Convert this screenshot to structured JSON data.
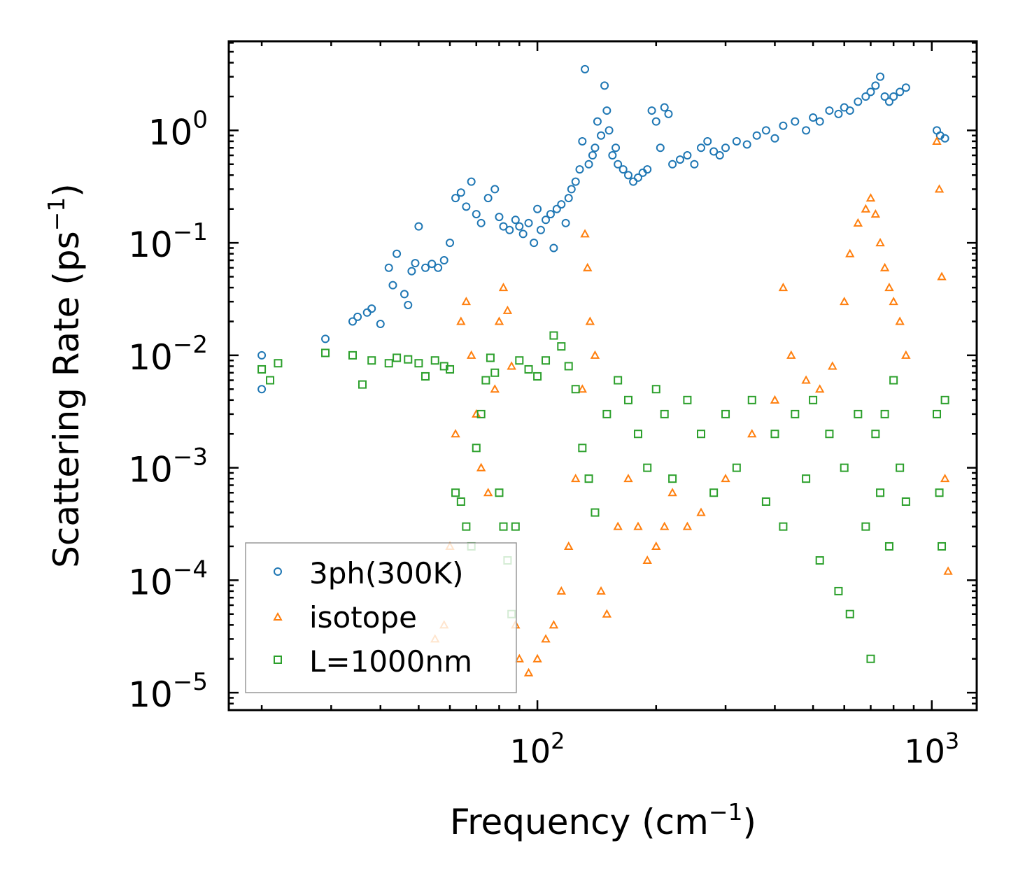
{
  "chart_data": {
    "type": "scatter",
    "xscale": "log",
    "yscale": "log",
    "xlim": [
      16.5,
      1300
    ],
    "ylim": [
      7e-06,
      6.2
    ],
    "xlabel": "Frequency (cm",
    "xlabel_sup": "−1",
    "xlabel_end": ")",
    "ylabel": "Scattering Rate (ps",
    "ylabel_sup": "−1",
    "ylabel_end": ")",
    "x_ticks": [
      {
        "value": 100,
        "base": "10",
        "exp": "2"
      },
      {
        "value": 1000,
        "base": "10",
        "exp": "3"
      }
    ],
    "y_ticks": [
      {
        "value": 1,
        "base": "10",
        "exp": "0"
      },
      {
        "value": 0.1,
        "base": "10",
        "exp": "−1"
      },
      {
        "value": 0.01,
        "base": "10",
        "exp": "−2"
      },
      {
        "value": 0.001,
        "base": "10",
        "exp": "−3"
      },
      {
        "value": 0.0001,
        "base": "10",
        "exp": "−4"
      },
      {
        "value": 1e-05,
        "base": "10",
        "exp": "−5"
      }
    ],
    "legend_position": "lower-left",
    "series": [
      {
        "name": "3ph(300K)",
        "marker": "circle",
        "color": "#1f77b4",
        "points": [
          [
            20,
            0.01
          ],
          [
            20,
            0.005
          ],
          [
            29,
            0.014
          ],
          [
            34,
            0.02
          ],
          [
            35,
            0.022
          ],
          [
            37,
            0.024
          ],
          [
            38,
            0.026
          ],
          [
            40,
            0.019
          ],
          [
            42,
            0.06
          ],
          [
            43,
            0.042
          ],
          [
            44,
            0.08
          ],
          [
            46,
            0.035
          ],
          [
            47,
            0.028
          ],
          [
            48,
            0.056
          ],
          [
            49,
            0.066
          ],
          [
            50,
            0.14
          ],
          [
            52,
            0.06
          ],
          [
            54,
            0.065
          ],
          [
            56,
            0.06
          ],
          [
            58,
            0.07
          ],
          [
            60,
            0.1
          ],
          [
            62,
            0.25
          ],
          [
            64,
            0.28
          ],
          [
            66,
            0.21
          ],
          [
            68,
            0.35
          ],
          [
            70,
            0.18
          ],
          [
            72,
            0.15
          ],
          [
            75,
            0.25
          ],
          [
            78,
            0.3
          ],
          [
            80,
            0.17
          ],
          [
            82,
            0.14
          ],
          [
            85,
            0.13
          ],
          [
            88,
            0.16
          ],
          [
            90,
            0.14
          ],
          [
            92,
            0.12
          ],
          [
            95,
            0.15
          ],
          [
            98,
            0.1
          ],
          [
            100,
            0.2
          ],
          [
            102,
            0.13
          ],
          [
            105,
            0.16
          ],
          [
            108,
            0.18
          ],
          [
            110,
            0.09
          ],
          [
            112,
            0.2
          ],
          [
            115,
            0.22
          ],
          [
            118,
            0.15
          ],
          [
            120,
            0.25
          ],
          [
            122,
            0.3
          ],
          [
            125,
            0.35
          ],
          [
            128,
            0.45
          ],
          [
            130,
            0.8
          ],
          [
            132,
            3.5
          ],
          [
            135,
            0.5
          ],
          [
            138,
            0.6
          ],
          [
            140,
            0.7
          ],
          [
            142,
            1.2
          ],
          [
            145,
            0.9
          ],
          [
            148,
            2.5
          ],
          [
            150,
            1.5
          ],
          [
            152,
            1.0
          ],
          [
            155,
            0.6
          ],
          [
            158,
            0.7
          ],
          [
            160,
            0.5
          ],
          [
            165,
            0.45
          ],
          [
            170,
            0.4
          ],
          [
            175,
            0.35
          ],
          [
            180,
            0.38
          ],
          [
            185,
            0.42
          ],
          [
            190,
            0.45
          ],
          [
            195,
            1.5
          ],
          [
            200,
            1.2
          ],
          [
            205,
            0.7
          ],
          [
            210,
            1.6
          ],
          [
            215,
            1.4
          ],
          [
            220,
            0.5
          ],
          [
            230,
            0.55
          ],
          [
            240,
            0.6
          ],
          [
            250,
            0.5
          ],
          [
            260,
            0.7
          ],
          [
            270,
            0.8
          ],
          [
            280,
            0.65
          ],
          [
            290,
            0.6
          ],
          [
            300,
            0.7
          ],
          [
            320,
            0.8
          ],
          [
            340,
            0.75
          ],
          [
            360,
            0.9
          ],
          [
            380,
            1.0
          ],
          [
            400,
            0.85
          ],
          [
            420,
            1.1
          ],
          [
            450,
            1.2
          ],
          [
            480,
            1.0
          ],
          [
            500,
            1.3
          ],
          [
            520,
            1.2
          ],
          [
            550,
            1.5
          ],
          [
            580,
            1.4
          ],
          [
            600,
            1.6
          ],
          [
            620,
            1.5
          ],
          [
            650,
            1.8
          ],
          [
            680,
            2.0
          ],
          [
            700,
            2.2
          ],
          [
            720,
            2.5
          ],
          [
            740,
            3.0
          ],
          [
            760,
            2.0
          ],
          [
            780,
            1.8
          ],
          [
            800,
            2.0
          ],
          [
            830,
            2.2
          ],
          [
            860,
            2.4
          ],
          [
            1030,
            1.0
          ],
          [
            1050,
            0.9
          ],
          [
            1080,
            0.85
          ]
        ]
      },
      {
        "name": "isotope",
        "marker": "triangle",
        "color": "#ff7f0e",
        "points": [
          [
            55,
            3e-05
          ],
          [
            58,
            4e-05
          ],
          [
            60,
            0.0002
          ],
          [
            62,
            0.002
          ],
          [
            64,
            0.02
          ],
          [
            66,
            0.03
          ],
          [
            68,
            0.01
          ],
          [
            70,
            0.003
          ],
          [
            72,
            0.001
          ],
          [
            75,
            0.0006
          ],
          [
            78,
            0.005
          ],
          [
            80,
            0.02
          ],
          [
            82,
            0.04
          ],
          [
            84,
            0.025
          ],
          [
            86,
            0.008
          ],
          [
            88,
            4e-05
          ],
          [
            90,
            2e-05
          ],
          [
            95,
            1.5e-05
          ],
          [
            100,
            2e-05
          ],
          [
            105,
            3e-05
          ],
          [
            110,
            4e-05
          ],
          [
            115,
            8e-05
          ],
          [
            120,
            0.0002
          ],
          [
            125,
            0.0008
          ],
          [
            130,
            0.005
          ],
          [
            132,
            0.12
          ],
          [
            134,
            0.06
          ],
          [
            136,
            0.02
          ],
          [
            140,
            0.01
          ],
          [
            145,
            8e-05
          ],
          [
            150,
            5e-05
          ],
          [
            160,
            0.0003
          ],
          [
            170,
            0.0008
          ],
          [
            180,
            0.0003
          ],
          [
            190,
            0.00015
          ],
          [
            200,
            0.0002
          ],
          [
            210,
            0.0003
          ],
          [
            220,
            0.0006
          ],
          [
            240,
            0.0003
          ],
          [
            260,
            0.0004
          ],
          [
            300,
            0.0008
          ],
          [
            350,
            0.002
          ],
          [
            400,
            0.004
          ],
          [
            420,
            0.04
          ],
          [
            440,
            0.01
          ],
          [
            480,
            0.006
          ],
          [
            520,
            0.005
          ],
          [
            560,
            0.008
          ],
          [
            600,
            0.03
          ],
          [
            620,
            0.08
          ],
          [
            650,
            0.15
          ],
          [
            680,
            0.2
          ],
          [
            700,
            0.25
          ],
          [
            720,
            0.18
          ],
          [
            740,
            0.1
          ],
          [
            760,
            0.06
          ],
          [
            780,
            0.04
          ],
          [
            800,
            0.03
          ],
          [
            830,
            0.02
          ],
          [
            860,
            0.01
          ],
          [
            1030,
            0.8
          ],
          [
            1045,
            0.3
          ],
          [
            1060,
            0.05
          ],
          [
            1080,
            0.0008
          ],
          [
            1100,
            0.00012
          ]
        ]
      },
      {
        "name": "L=1000nm",
        "marker": "square",
        "color": "#2ca02c",
        "points": [
          [
            20,
            0.0075
          ],
          [
            21,
            0.006
          ],
          [
            22,
            0.0085
          ],
          [
            29,
            0.0105
          ],
          [
            34,
            0.01
          ],
          [
            36,
            0.0055
          ],
          [
            38,
            0.009
          ],
          [
            42,
            0.0085
          ],
          [
            44,
            0.0095
          ],
          [
            47,
            0.0092
          ],
          [
            50,
            0.0085
          ],
          [
            52,
            0.0065
          ],
          [
            55,
            0.009
          ],
          [
            58,
            0.008
          ],
          [
            60,
            0.0075
          ],
          [
            62,
            0.0006
          ],
          [
            64,
            0.0005
          ],
          [
            66,
            0.0003
          ],
          [
            68,
            0.0002
          ],
          [
            70,
            0.0015
          ],
          [
            72,
            0.003
          ],
          [
            74,
            0.006
          ],
          [
            76,
            0.0095
          ],
          [
            78,
            0.007
          ],
          [
            80,
            0.0006
          ],
          [
            82,
            0.0003
          ],
          [
            84,
            0.00015
          ],
          [
            86,
            5e-05
          ],
          [
            88,
            0.0003
          ],
          [
            90,
            0.009
          ],
          [
            95,
            0.0075
          ],
          [
            100,
            0.0065
          ],
          [
            105,
            0.009
          ],
          [
            110,
            0.015
          ],
          [
            115,
            0.012
          ],
          [
            120,
            0.008
          ],
          [
            125,
            0.005
          ],
          [
            130,
            0.0015
          ],
          [
            135,
            0.0008
          ],
          [
            140,
            0.0004
          ],
          [
            150,
            0.003
          ],
          [
            160,
            0.006
          ],
          [
            170,
            0.004
          ],
          [
            180,
            0.002
          ],
          [
            190,
            0.001
          ],
          [
            200,
            0.005
          ],
          [
            210,
            0.003
          ],
          [
            220,
            0.0008
          ],
          [
            240,
            0.004
          ],
          [
            260,
            0.002
          ],
          [
            280,
            0.0006
          ],
          [
            300,
            0.003
          ],
          [
            320,
            0.001
          ],
          [
            350,
            0.004
          ],
          [
            380,
            0.0005
          ],
          [
            400,
            0.002
          ],
          [
            420,
            0.0003
          ],
          [
            450,
            0.003
          ],
          [
            480,
            0.0008
          ],
          [
            500,
            0.004
          ],
          [
            520,
            0.00015
          ],
          [
            550,
            0.002
          ],
          [
            580,
            8e-05
          ],
          [
            600,
            0.001
          ],
          [
            620,
            5e-05
          ],
          [
            650,
            0.003
          ],
          [
            680,
            0.0003
          ],
          [
            700,
            2e-05
          ],
          [
            720,
            0.002
          ],
          [
            740,
            0.0006
          ],
          [
            760,
            0.003
          ],
          [
            780,
            0.0002
          ],
          [
            800,
            0.006
          ],
          [
            830,
            0.001
          ],
          [
            860,
            0.0005
          ],
          [
            1030,
            0.003
          ],
          [
            1045,
            0.0006
          ],
          [
            1060,
            0.0002
          ],
          [
            1080,
            0.004
          ]
        ]
      }
    ]
  }
}
